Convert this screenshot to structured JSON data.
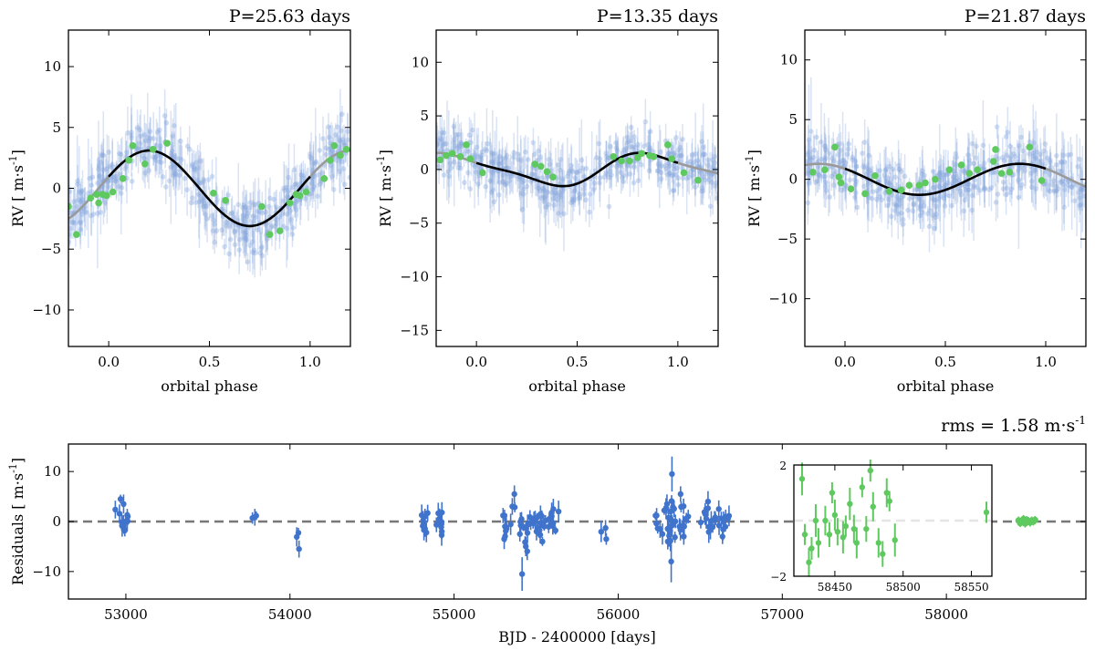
{
  "chart_data": [
    {
      "id": "p1",
      "type": "scatter",
      "title": "P=25.63 days",
      "xlabel": "orbital phase",
      "ylabel_base": "RV [ m·s",
      "ylabel_exp": "-1",
      "ylabel_end": "]",
      "xlim": [
        -0.2,
        1.2
      ],
      "ylim": [
        -13,
        13
      ],
      "xticks": [
        0.0,
        0.5,
        1.0
      ],
      "xticklabels": [
        "0.0",
        "0.5",
        "1.0"
      ],
      "yticks": [
        -10,
        -5,
        0,
        5,
        10
      ],
      "yticklabels": [
        "−10",
        "−5",
        "0",
        "5",
        "10"
      ],
      "model": {
        "K": 3.1,
        "phase0": 0.2,
        "shape": "sine"
      },
      "green_points": [
        [
          -0.2,
          -1.5
        ],
        [
          -0.16,
          -3.8
        ],
        [
          -0.09,
          -0.8
        ],
        [
          -0.06,
          -0.5
        ],
        [
          -0.05,
          -1.2
        ],
        [
          -0.03,
          -0.5
        ],
        [
          -0.01,
          -0.6
        ],
        [
          0.02,
          -0.3
        ],
        [
          0.07,
          0.8
        ],
        [
          0.1,
          2.3
        ],
        [
          0.12,
          3.5
        ],
        [
          0.18,
          2.0
        ],
        [
          0.22,
          3.2
        ],
        [
          0.29,
          3.7
        ],
        [
          0.52,
          -0.4
        ],
        [
          0.58,
          -1.0
        ],
        [
          0.76,
          -1.5
        ],
        [
          0.8,
          -3.8
        ],
        [
          0.85,
          -3.5
        ],
        [
          0.9,
          -1.2
        ],
        [
          0.93,
          -0.5
        ],
        [
          0.95,
          -0.6
        ],
        [
          0.98,
          -0.3
        ],
        [
          1.07,
          0.8
        ],
        [
          1.1,
          2.3
        ],
        [
          1.12,
          3.5
        ],
        [
          1.15,
          2.7
        ],
        [
          1.18,
          3.2
        ]
      ]
    },
    {
      "id": "p2",
      "type": "scatter",
      "title": "P=13.35 days",
      "xlabel": "orbital phase",
      "ylabel_base": "RV [ m·s",
      "ylabel_exp": "-1",
      "ylabel_end": "]",
      "xlim": [
        -0.2,
        1.2
      ],
      "ylim": [
        -16.5,
        13
      ],
      "xticks": [
        0.0,
        0.5,
        1.0
      ],
      "xticklabels": [
        "0.0",
        "0.5",
        "1.0"
      ],
      "yticks": [
        -15,
        -10,
        -5,
        0,
        5,
        10
      ],
      "yticklabels": [
        "−15",
        "−10",
        "−5",
        "0",
        "5",
        "10"
      ],
      "model": {
        "K": 1.55,
        "phase0": 0.87,
        "shape": "skewed"
      },
      "green_points": [
        [
          -0.18,
          0.9
        ],
        [
          -0.15,
          1.3
        ],
        [
          -0.12,
          1.5
        ],
        [
          -0.08,
          1.2
        ],
        [
          -0.05,
          2.3
        ],
        [
          -0.03,
          1.0
        ],
        [
          0.03,
          -0.3
        ],
        [
          0.29,
          0.5
        ],
        [
          0.32,
          0.3
        ],
        [
          0.35,
          -0.2
        ],
        [
          0.38,
          -0.7
        ],
        [
          0.68,
          1.2
        ],
        [
          0.72,
          0.8
        ],
        [
          0.76,
          0.8
        ],
        [
          0.8,
          1.1
        ],
        [
          0.82,
          1.5
        ],
        [
          0.86,
          1.3
        ],
        [
          0.88,
          1.2
        ],
        [
          0.95,
          2.3
        ],
        [
          0.97,
          1.0
        ],
        [
          1.03,
          -0.3
        ],
        [
          1.1,
          -1.0
        ]
      ]
    },
    {
      "id": "p3",
      "type": "scatter",
      "title": "P=21.87 days",
      "xlabel": "orbital phase",
      "ylabel_base": "RV [ m·s",
      "ylabel_exp": "-1",
      "ylabel_end": "]",
      "xlim": [
        -0.2,
        1.2
      ],
      "ylim": [
        -14,
        12.5
      ],
      "xticks": [
        0.0,
        0.5,
        1.0
      ],
      "xticklabels": [
        "0.0",
        "0.5",
        "1.0"
      ],
      "yticks": [
        -10,
        -5,
        0,
        5,
        10
      ],
      "yticklabels": [
        "−10",
        "−5",
        "0",
        "5",
        "10"
      ],
      "model": {
        "K": 1.3,
        "phase0": 0.87,
        "shape": "sine"
      },
      "green_points": [
        [
          -0.16,
          0.6
        ],
        [
          -0.1,
          0.8
        ],
        [
          -0.05,
          2.7
        ],
        [
          -0.03,
          0.2
        ],
        [
          -0.02,
          -0.3
        ],
        [
          0.03,
          -0.8
        ],
        [
          0.1,
          -1.2
        ],
        [
          0.15,
          0.3
        ],
        [
          0.22,
          -1.0
        ],
        [
          0.28,
          -0.9
        ],
        [
          0.32,
          -0.5
        ],
        [
          0.37,
          -0.5
        ],
        [
          0.4,
          -0.3
        ],
        [
          0.45,
          0.0
        ],
        [
          0.52,
          0.8
        ],
        [
          0.58,
          1.2
        ],
        [
          0.62,
          0.5
        ],
        [
          0.66,
          0.8
        ],
        [
          0.74,
          1.5
        ],
        [
          0.75,
          2.5
        ],
        [
          0.78,
          0.5
        ],
        [
          0.82,
          0.6
        ],
        [
          0.92,
          2.7
        ],
        [
          0.98,
          -0.1
        ]
      ]
    },
    {
      "id": "res",
      "type": "scatter",
      "title": "rms = 1.58  m·s",
      "title_exp": "-1",
      "xlabel": "BJD - 2400000 [days]",
      "ylabel_base": "Residuals [ m·s",
      "ylabel_exp": "-1",
      "ylabel_end": "]",
      "xlim": [
        52650,
        58850
      ],
      "ylim": [
        -15.5,
        15.5
      ],
      "xticks": [
        53000,
        54000,
        55000,
        56000,
        57000,
        58000
      ],
      "xticklabels": [
        "53000",
        "54000",
        "55000",
        "56000",
        "57000",
        "58000"
      ],
      "yticks": [
        -10,
        0,
        10
      ],
      "yticklabels": [
        "−10",
        "0",
        "10"
      ],
      "zero_line": 0,
      "blue_points": [
        [
          52950,
          4.5
        ],
        [
          52990,
          -1.5
        ],
        [
          53000,
          3.5
        ],
        [
          53005,
          0.0
        ],
        [
          52995,
          -1.8
        ],
        [
          53790,
          0.7
        ],
        [
          54060,
          -5.5
        ],
        [
          54810,
          0.2
        ],
        [
          54815,
          -2.2
        ],
        [
          54820,
          1.0
        ],
        [
          54905,
          -0.5
        ],
        [
          54910,
          1.8
        ],
        [
          54915,
          0.2
        ],
        [
          54920,
          -2.0
        ],
        [
          55310,
          1.2
        ],
        [
          55320,
          -3.5
        ],
        [
          55330,
          -1.0
        ],
        [
          55360,
          5.5
        ],
        [
          55400,
          0.5
        ],
        [
          55420,
          -2.5
        ],
        [
          55430,
          -10.5
        ],
        [
          55450,
          -5.0
        ],
        [
          55470,
          -0.2
        ],
        [
          55490,
          0.5
        ],
        [
          55500,
          -2.0
        ],
        [
          55520,
          1.5
        ],
        [
          55540,
          -4.0
        ],
        [
          55560,
          0.2
        ],
        [
          55580,
          1.8
        ],
        [
          55600,
          -0.5
        ],
        [
          55620,
          2.5
        ],
        [
          55910,
          -3.5
        ],
        [
          56240,
          1.2
        ],
        [
          56260,
          -2.5
        ],
        [
          56280,
          3.5
        ],
        [
          56300,
          -4.0
        ],
        [
          56310,
          0.5
        ],
        [
          56320,
          9.5
        ],
        [
          56330,
          -8.0
        ],
        [
          56340,
          2.0
        ],
        [
          56360,
          -1.0
        ],
        [
          56380,
          5.5
        ],
        [
          56400,
          -3.0
        ],
        [
          56420,
          1.0
        ],
        [
          56520,
          1.5
        ],
        [
          56540,
          4.0
        ],
        [
          56560,
          -1.5
        ],
        [
          56580,
          0.5
        ],
        [
          56600,
          2.5
        ],
        [
          56620,
          -3.0
        ],
        [
          56640,
          0.0
        ],
        [
          56660,
          1.0
        ]
      ],
      "green_points": [
        [
          58440,
          0.2
        ],
        [
          58450,
          -0.3
        ],
        [
          58460,
          0.0
        ],
        [
          58470,
          0.5
        ],
        [
          58480,
          -0.4
        ],
        [
          58490,
          0.3
        ],
        [
          58500,
          0.1
        ],
        [
          58510,
          -0.2
        ],
        [
          58520,
          0.2
        ],
        [
          58530,
          0.0
        ],
        [
          58540,
          0.3
        ]
      ]
    },
    {
      "id": "inset",
      "type": "scatter",
      "title": "",
      "xlim": [
        58420,
        58565
      ],
      "ylim": [
        -2,
        2
      ],
      "xticks": [
        58450,
        58500,
        58550
      ],
      "xticklabels": [
        "58450",
        "58500",
        "58550"
      ],
      "yticks": [
        -2,
        2
      ],
      "yticklabels": [
        "−2",
        "2"
      ],
      "zero_line": 0,
      "green_points": [
        [
          58426,
          1.5
        ],
        [
          58428,
          -0.5
        ],
        [
          58431,
          -1.5
        ],
        [
          58433,
          -1.0
        ],
        [
          58436,
          0.0
        ],
        [
          58438,
          -0.8
        ],
        [
          58443,
          0.0
        ],
        [
          58446,
          -0.5
        ],
        [
          58448,
          1.0
        ],
        [
          58450,
          0.2
        ],
        [
          58452,
          -0.4
        ],
        [
          58456,
          -0.6
        ],
        [
          58458,
          -0.2
        ],
        [
          58461,
          0.6
        ],
        [
          58464,
          -0.3
        ],
        [
          58466,
          -0.8
        ],
        [
          58470,
          1.2
        ],
        [
          58473,
          -0.3
        ],
        [
          58476,
          1.8
        ],
        [
          58478,
          0.5
        ],
        [
          58482,
          -0.8
        ],
        [
          58485,
          -1.2
        ],
        [
          58488,
          1.0
        ],
        [
          58490,
          0.7
        ],
        [
          58494,
          -0.7
        ],
        [
          58561,
          0.3
        ]
      ]
    }
  ]
}
